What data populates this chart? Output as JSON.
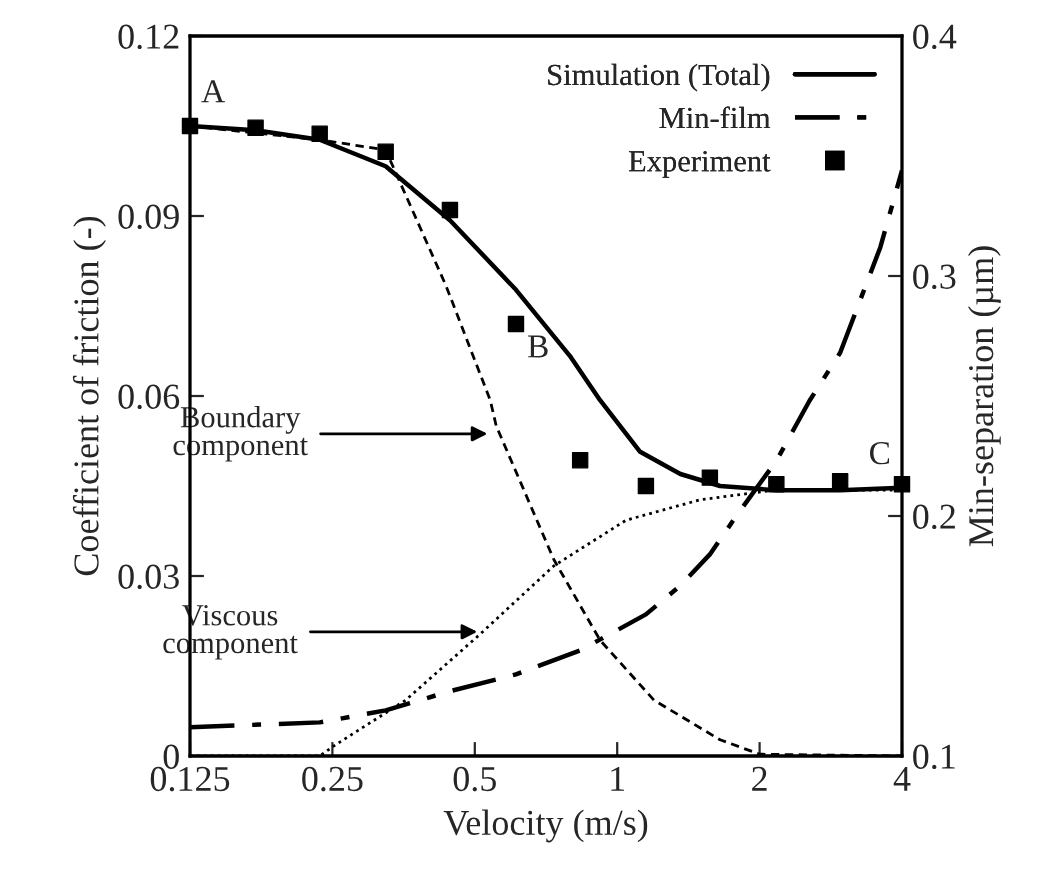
{
  "chart_data": {
    "type": "line",
    "xlabel": "Velocity (m/s)",
    "ylabel": "Coefficient of friction (-)",
    "y2label": "Min-separation (µm)",
    "log": "x",
    "xlim": [
      0.125,
      4
    ],
    "xticks": [
      0.125,
      0.25,
      0.5,
      1,
      2,
      4
    ],
    "ylim": [
      0,
      0.12
    ],
    "yticks": [
      0,
      0.03,
      0.06,
      0.09,
      0.12
    ],
    "y2lim": [
      0.1,
      0.4
    ],
    "y2ticks": [
      0.1,
      0.2,
      0.3,
      0.4
    ],
    "grid": false,
    "legend": "top right",
    "series": [
      {
        "name": "Simulation (Total)",
        "color": "#000000",
        "line_style": "solid",
        "marker": "none",
        "x": [
          0.125,
          0.172,
          0.235,
          0.324,
          0.443,
          0.611,
          0.794,
          0.92,
          1.118,
          1.36,
          1.65,
          2.17,
          2.96,
          4
        ],
        "values": [
          0.105,
          0.1043,
          0.1027,
          0.0983,
          0.0893,
          0.0777,
          0.0667,
          0.0593,
          0.0507,
          0.047,
          0.045,
          0.0443,
          0.0443,
          0.0447
        ]
      },
      {
        "name": "Min-film",
        "axis": "y2",
        "color": "#000000",
        "line_style": "dashdot",
        "marker": "none",
        "x": [
          0.125,
          0.235,
          0.324,
          0.443,
          0.611,
          0.835,
          1.15,
          1.36,
          1.57,
          1.8,
          2.17,
          2.55,
          2.96,
          3.6,
          4
        ],
        "values": [
          0.112,
          0.114,
          0.119,
          0.127,
          0.134,
          0.144,
          0.159,
          0.171,
          0.184,
          0.201,
          0.223,
          0.248,
          0.268,
          0.312,
          0.344
        ]
      },
      {
        "name": "Experiment",
        "type": "scatter",
        "color": "#000000",
        "marker": "square",
        "x": [
          0.125,
          0.172,
          0.235,
          0.324,
          0.443,
          0.611,
          0.835,
          1.15,
          1.57,
          2.17,
          2.96,
          4
        ],
        "values": [
          0.105,
          0.1047,
          0.1037,
          0.1007,
          0.091,
          0.072,
          0.0493,
          0.045,
          0.0464,
          0.0453,
          0.0458,
          0.0453
        ]
      },
      {
        "color": "#000000",
        "line_style": "dashed",
        "marker": "none",
        "x": [
          0.125,
          0.235,
          0.324,
          0.435,
          0.539,
          0.555,
          0.735,
          0.92,
          1.196,
          1.65,
          2.0,
          4
        ],
        "values": [
          0.105,
          0.1027,
          0.101,
          0.0783,
          0.0593,
          0.055,
          0.0327,
          0.0193,
          0.0093,
          0.0027,
          0.0003,
          0
        ]
      },
      {
        "color": "#000000",
        "line_style": "dotted",
        "marker": "none",
        "x": [
          0.125,
          0.235,
          0.252,
          0.357,
          0.513,
          0.735,
          1.044,
          1.496,
          2.143,
          4
        ],
        "values": [
          0,
          0,
          0.0017,
          0.0093,
          0.0203,
          0.0317,
          0.0393,
          0.0427,
          0.0443,
          0.0443
        ]
      }
    ],
    "annotations": [
      {
        "text": "A",
        "x": 0.125,
        "y": 0.105
      },
      {
        "text": "B",
        "x": 0.611,
        "y": 0.0777
      },
      {
        "text": "C",
        "x": 4,
        "y": 0.0447
      },
      {
        "text": "Boundary\ncomponent",
        "x": 0.539,
        "y": 0.0537
      },
      {
        "text": "Viscous\ncomponent",
        "x": 0.513,
        "y": 0.0207
      }
    ]
  }
}
